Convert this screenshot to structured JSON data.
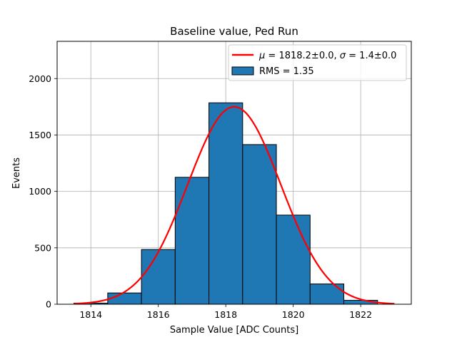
{
  "chart_data": {
    "type": "bar",
    "title": "Baseline value, Ped Run",
    "xlabel": "Sample Value [ADC Counts]",
    "ylabel": "Events",
    "xlim": [
      1813.0,
      1823.5
    ],
    "ylim": [
      0,
      2330
    ],
    "grid": true,
    "legend_position": "top-right",
    "x_ticks": [
      1814,
      1816,
      1818,
      1820,
      1822
    ],
    "y_ticks": [
      0,
      500,
      1000,
      1500,
      2000
    ],
    "histogram": {
      "name": "RMS = 1.35",
      "bin_edges": [
        1813.5,
        1814.5,
        1815.5,
        1816.5,
        1817.5,
        1818.5,
        1819.5,
        1820.5,
        1821.5,
        1822.5
      ],
      "counts": [
        10,
        100,
        485,
        1125,
        1785,
        1415,
        790,
        180,
        35
      ],
      "fill_color": "#1f77b4",
      "edge_color": "#000000"
    },
    "fit": {
      "name": "$\\mu = 1818.2\\pm0.0$, $\\sigma = 1.4\\pm0.0$",
      "name_parts": {
        "mu_symbol": "μ",
        "mu_text": " = 1818.2±0.0, ",
        "sigma_symbol": "σ",
        "sigma_text": " = 1.4±0.0"
      },
      "type": "gaussian",
      "mu": 1818.25,
      "sigma": 1.38,
      "amplitude": 1750,
      "x_range": [
        1813.5,
        1823.0
      ],
      "color": "#ff0000"
    },
    "legend": {
      "fit_label_html": "",
      "hist_label": "RMS = 1.35"
    }
  }
}
